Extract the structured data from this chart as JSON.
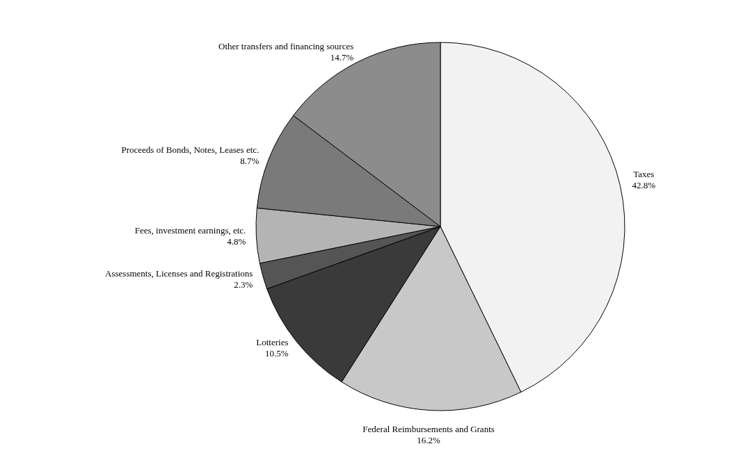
{
  "chart_data": {
    "type": "pie",
    "categories": [
      "Taxes",
      "Federal Reimbursements and Grants",
      "Lotteries",
      "Assessments, Licenses and Registrations",
      "Fees, investment earnings, etc.",
      "Proceeds of Bonds, Notes, Leases etc.",
      "Other transfers and financing sources"
    ],
    "values": [
      42.8,
      16.2,
      10.5,
      2.3,
      4.8,
      8.7,
      14.7
    ],
    "value_labels": [
      "42.8%",
      "16.2%",
      "10.5%",
      "2.3%",
      "4.8%",
      "8.7%",
      "14.7%"
    ],
    "colors": [
      "#f2f2f2",
      "#c8c8c8",
      "#3a3a3a",
      "#555555",
      "#b4b4b4",
      "#7a7a7a",
      "#8c8c8c"
    ]
  }
}
